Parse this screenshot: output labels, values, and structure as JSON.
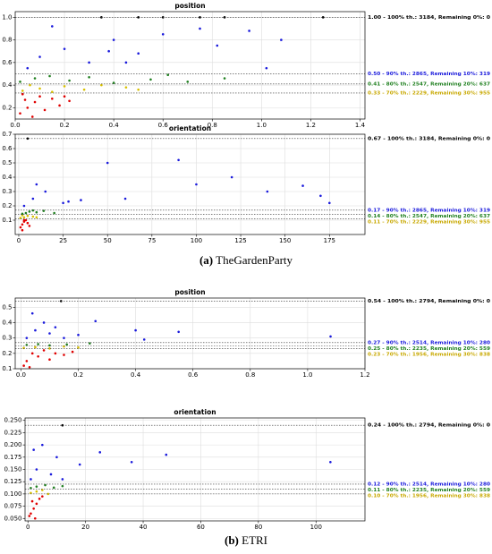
{
  "chart_data": [
    {
      "type": "scatter",
      "title": "position",
      "xlim": [
        0,
        1.42
      ],
      "ylim": [
        0.1,
        1.05
      ],
      "grid": true,
      "xticks": [
        {
          "value": 0,
          "label": "0.0"
        },
        0.2,
        0.4,
        0.6,
        0.8,
        {
          "value": 1,
          "label": "1.0"
        },
        1.2,
        1.4
      ],
      "yticks": [
        0.2,
        0.4,
        0.6,
        0.8,
        {
          "value": 1,
          "label": "1.0"
        }
      ],
      "series": [
        {
          "color": "#e00000",
          "x": [
            0.02,
            0.05,
            0.08,
            0.1,
            0.12,
            0.15,
            0.03,
            0.07,
            0.18,
            0.2,
            0.22,
            0.04
          ],
          "y": [
            0.15,
            0.2,
            0.25,
            0.3,
            0.18,
            0.28,
            0.32,
            0.12,
            0.22,
            0.3,
            0.26,
            0.27
          ]
        },
        {
          "color": "#d8c000",
          "x": [
            0.03,
            0.1,
            0.2,
            0.28,
            0.35,
            0.45,
            0.06,
            0.15,
            0.5
          ],
          "y": [
            0.35,
            0.37,
            0.39,
            0.36,
            0.4,
            0.38,
            0.4,
            0.34,
            0.36
          ]
        },
        {
          "color": "#208020",
          "x": [
            0.02,
            0.08,
            0.14,
            0.22,
            0.3,
            0.4,
            0.55,
            0.62,
            0.7,
            0.85
          ],
          "y": [
            0.43,
            0.46,
            0.48,
            0.44,
            0.47,
            0.42,
            0.45,
            0.49,
            0.43,
            0.46
          ]
        },
        {
          "color": "#1a1adc",
          "x": [
            0.05,
            0.1,
            0.2,
            0.3,
            0.4,
            0.5,
            0.6,
            0.75,
            0.82,
            0.95,
            1.02,
            1.08,
            0.15,
            0.45,
            0.38
          ],
          "y": [
            0.55,
            0.65,
            0.72,
            0.6,
            0.8,
            0.68,
            0.85,
            0.9,
            0.75,
            0.88,
            0.55,
            0.8,
            0.92,
            0.6,
            0.7
          ]
        },
        {
          "color": "#000000",
          "x": [
            0.35,
            0.5,
            0.6,
            0.75,
            0.85,
            1.25
          ],
          "y": [
            1,
            1,
            1,
            1,
            1,
            1
          ]
        }
      ],
      "thresholds": [
        {
          "value": 1,
          "label": "1.00 - 100% th.: 3184, Remaining 0%: 0",
          "color": "#000000"
        },
        {
          "value": 0.5,
          "label": "0.50 - 90% th.: 2865, Remaining 10%: 319",
          "color": "#1a1adc"
        },
        {
          "value": 0.41,
          "label": "0.41 - 80% th.: 2547, Remaining 20%: 637",
          "color": "#208020"
        },
        {
          "value": 0.33,
          "label": "0.33 - 70% th.: 2229, Remaining 30%: 955",
          "color": "#c8a800"
        }
      ]
    },
    {
      "type": "scatter",
      "title": "orientation",
      "xlim": [
        -2,
        195
      ],
      "ylim": [
        0,
        0.7
      ],
      "grid": true,
      "xticks": [
        0,
        25,
        50,
        75,
        100,
        125,
        150,
        175
      ],
      "yticks": [
        0.1,
        0.2,
        0.3,
        0.4,
        0.5,
        0.6,
        0.7
      ],
      "series": [
        {
          "color": "#e00000",
          "x": [
            1,
            2,
            3,
            4,
            5,
            6,
            2,
            3
          ],
          "y": [
            0.05,
            0.07,
            0.09,
            0.1,
            0.08,
            0.06,
            0.03,
            0.1
          ]
        },
        {
          "color": "#d8c000",
          "x": [
            1,
            3,
            5,
            8,
            10,
            2
          ],
          "y": [
            0.115,
            0.12,
            0.13,
            0.125,
            0.12,
            0.135
          ]
        },
        {
          "color": "#208020",
          "x": [
            2,
            4,
            6,
            10,
            14,
            20,
            8
          ],
          "y": [
            0.145,
            0.15,
            0.16,
            0.155,
            0.165,
            0.15,
            0.168
          ]
        },
        {
          "color": "#1a1adc",
          "x": [
            3,
            8,
            15,
            25,
            35,
            50,
            60,
            90,
            100,
            120,
            140,
            160,
            170,
            175,
            10,
            28
          ],
          "y": [
            0.2,
            0.25,
            0.3,
            0.22,
            0.24,
            0.5,
            0.25,
            0.52,
            0.35,
            0.4,
            0.3,
            0.34,
            0.27,
            0.22,
            0.35,
            0.23
          ]
        },
        {
          "color": "#000000",
          "x": [
            5
          ],
          "y": [
            0.67
          ]
        }
      ],
      "thresholds": [
        {
          "value": 0.67,
          "label": "0.67 - 100% th.: 3184, Remaining 0%: 0",
          "color": "#000000"
        },
        {
          "value": 0.17,
          "label": "0.17 - 90% th.: 2865, Remaining 10%: 319",
          "color": "#1a1adc"
        },
        {
          "value": 0.14,
          "label": "0.14 - 80% th.: 2547, Remaining 20%: 637",
          "color": "#208020"
        },
        {
          "value": 0.11,
          "label": "0.11 - 70% th.: 2229, Remaining 30%: 955",
          "color": "#c8a800"
        }
      ]
    },
    {
      "type": "scatter",
      "title": "position",
      "xlim": [
        -0.02,
        1.2
      ],
      "ylim": [
        0.1,
        0.56
      ],
      "grid": true,
      "xticks": [
        {
          "value": 0,
          "label": "0.0"
        },
        0.2,
        0.4,
        0.6,
        0.8,
        {
          "value": 1,
          "label": "1.0"
        },
        1.2
      ],
      "yticks": [
        0.1,
        0.2,
        0.3,
        0.4,
        0.5
      ],
      "series": [
        {
          "color": "#e00000",
          "x": [
            0.01,
            0.02,
            0.04,
            0.06,
            0.08,
            0.1,
            0.12,
            0.15,
            0.18,
            0.03
          ],
          "y": [
            0.12,
            0.15,
            0.2,
            0.18,
            0.22,
            0.16,
            0.2,
            0.19,
            0.21,
            0.11
          ]
        },
        {
          "color": "#d8c000",
          "x": [
            0.01,
            0.05,
            0.1,
            0.15,
            0.2
          ],
          "y": [
            0.235,
            0.24,
            0.232,
            0.245,
            0.238
          ]
        },
        {
          "color": "#208020",
          "x": [
            0.02,
            0.06,
            0.1,
            0.16,
            0.24
          ],
          "y": [
            0.255,
            0.26,
            0.252,
            0.258,
            0.265
          ]
        },
        {
          "color": "#1a1adc",
          "x": [
            0.02,
            0.05,
            0.08,
            0.1,
            0.12,
            0.15,
            0.2,
            0.26,
            0.4,
            0.43,
            0.55,
            1.08,
            0.04
          ],
          "y": [
            0.3,
            0.35,
            0.4,
            0.33,
            0.37,
            0.3,
            0.32,
            0.41,
            0.35,
            0.29,
            0.34,
            0.31,
            0.46
          ]
        },
        {
          "color": "#000000",
          "x": [
            0.14
          ],
          "y": [
            0.54
          ]
        }
      ],
      "thresholds": [
        {
          "value": 0.54,
          "label": "0.54 - 100% th.: 2794, Remaining 0%: 0",
          "color": "#000000"
        },
        {
          "value": 0.27,
          "label": "0.27 - 90% th.: 2514, Remaining 10%: 280",
          "color": "#1a1adc"
        },
        {
          "value": 0.25,
          "label": "0.25 - 80% th.: 2235, Remaining 20%: 559",
          "color": "#208020"
        },
        {
          "value": 0.23,
          "label": "0.23 - 70% th.: 1956, Remaining 30%: 838",
          "color": "#c8a800"
        }
      ]
    },
    {
      "type": "scatter",
      "title": "orientation",
      "xlim": [
        -1,
        117
      ],
      "ylim": [
        0.045,
        0.255
      ],
      "grid": true,
      "xticks": [
        0,
        20,
        40,
        60,
        80,
        100
      ],
      "yticks": [
        {
          "value": 0.05,
          "label": "0.050"
        },
        0.075,
        {
          "value": 0.1,
          "label": "0.100"
        },
        0.125,
        {
          "value": 0.15,
          "label": "0.150"
        },
        0.175,
        {
          "value": 0.2,
          "label": "0.200"
        },
        0.225,
        {
          "value": 0.25,
          "label": "0.250"
        }
      ],
      "series": [
        {
          "color": "#e00000",
          "x": [
            0.5,
            1,
            2,
            3,
            4,
            5,
            1.5,
            2.5
          ],
          "y": [
            0.055,
            0.06,
            0.07,
            0.08,
            0.09,
            0.095,
            0.085,
            0.05
          ]
        },
        {
          "color": "#d8c000",
          "x": [
            1,
            3,
            5,
            7
          ],
          "y": [
            0.102,
            0.105,
            0.108,
            0.1
          ]
        },
        {
          "color": "#208020",
          "x": [
            1,
            3,
            6,
            9,
            12
          ],
          "y": [
            0.112,
            0.115,
            0.118,
            0.113,
            0.116
          ]
        },
        {
          "color": "#1a1adc",
          "x": [
            1,
            3,
            5,
            8,
            12,
            18,
            25,
            36,
            48,
            105,
            2,
            10
          ],
          "y": [
            0.13,
            0.15,
            0.2,
            0.14,
            0.13,
            0.16,
            0.185,
            0.165,
            0.18,
            0.165,
            0.19,
            0.175
          ]
        },
        {
          "color": "#000000",
          "x": [
            12
          ],
          "y": [
            0.24
          ]
        }
      ],
      "thresholds": [
        {
          "value": 0.24,
          "label": "0.24 - 100% th.: 2794, Remaining 0%: 0",
          "color": "#000000"
        },
        {
          "value": 0.12,
          "label": "0.12 - 90% th.: 2514, Remaining 10%: 280",
          "color": "#1a1adc"
        },
        {
          "value": 0.11,
          "label": "0.11 - 80% th.: 2235, Remaining 20%: 559",
          "color": "#208020"
        },
        {
          "value": 0.1,
          "label": "0.10 - 70% th.: 1956, Remaining 30%: 838",
          "color": "#c8a800"
        }
      ]
    }
  ],
  "captions": [
    {
      "label": "(a)",
      "text": "TheGardenParty"
    },
    {
      "label": "(b)",
      "text": "ETRI"
    }
  ]
}
